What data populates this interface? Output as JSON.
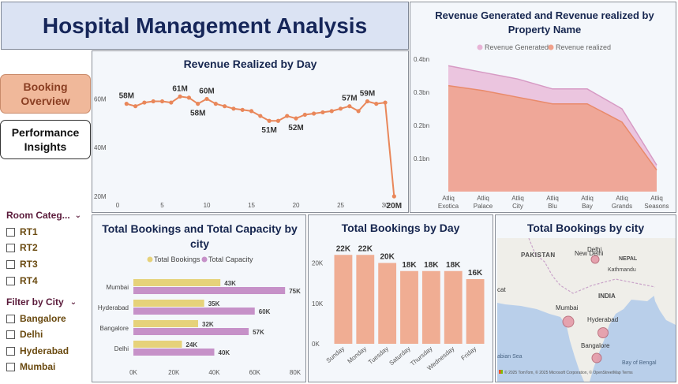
{
  "dashboard_title": "Hospital Management Analysis",
  "nav": {
    "booking_overview": "Booking Overview",
    "performance_insights": "Performance Insights"
  },
  "filters": {
    "room_category": {
      "title": "Room Categ...",
      "options": [
        "RT1",
        "RT2",
        "RT3",
        "RT4"
      ]
    },
    "city": {
      "title": "Filter by City",
      "options": [
        "Bangalore",
        "Delhi",
        "Hyderabad",
        "Mumbai"
      ]
    }
  },
  "colors": {
    "line": "#e9875a",
    "area_generated": "#e8b4d6",
    "area_realized": "#f0a18c",
    "total_bookings": "#e6d27a",
    "total_capacity": "#c691c8",
    "day_bar": "#f0ad93",
    "map_marker": "#e59aa8"
  },
  "chart_data": [
    {
      "id": "revenue_by_day",
      "type": "line",
      "title": "Revenue Realized by Day",
      "x": [
        1,
        2,
        3,
        4,
        5,
        6,
        7,
        8,
        9,
        10,
        11,
        12,
        13,
        14,
        15,
        16,
        17,
        18,
        19,
        20,
        21,
        22,
        23,
        24,
        25,
        26,
        27,
        28,
        29,
        30,
        31
      ],
      "values": [
        58,
        57,
        58.5,
        59,
        59,
        58.5,
        61,
        60.5,
        58,
        60,
        58,
        57,
        56,
        55.5,
        55,
        53,
        51,
        51,
        53,
        52,
        53.5,
        54,
        54.5,
        55,
        56,
        57,
        55,
        59,
        58,
        58.5,
        20
      ],
      "data_labels": [
        {
          "x": 1,
          "label": "58M"
        },
        {
          "x": 7,
          "label": "61M"
        },
        {
          "x": 9,
          "label": "58M"
        },
        {
          "x": 10,
          "label": "60M"
        },
        {
          "x": 17,
          "label": "51M"
        },
        {
          "x": 20,
          "label": "52M"
        },
        {
          "x": 26,
          "label": "57M"
        },
        {
          "x": 28,
          "label": "59M"
        },
        {
          "x": 31,
          "label": "20M"
        }
      ],
      "x_ticks": [
        0,
        5,
        10,
        15,
        20,
        25,
        30
      ],
      "y_ticks": [
        {
          "v": 20,
          "label": "20M"
        },
        {
          "v": 40,
          "label": "40M"
        },
        {
          "v": 60,
          "label": "60M"
        }
      ],
      "ylim": [
        20,
        65
      ],
      "xlim": [
        0,
        31.5
      ]
    },
    {
      "id": "revenue_by_property",
      "type": "area",
      "title": "Revenue Generated and Revenue realized by Property Name",
      "categories": [
        "Atliq Exotica",
        "Atliq Palace",
        "Atliq City",
        "Atliq Blu",
        "Atliq Bay",
        "Atliq Grands",
        "Atliq Seasons"
      ],
      "series": [
        {
          "name": "Revenue Generated",
          "values": [
            0.38,
            0.36,
            0.34,
            0.31,
            0.31,
            0.25,
            0.08
          ]
        },
        {
          "name": "Revenue realized",
          "values": [
            0.32,
            0.305,
            0.285,
            0.265,
            0.265,
            0.21,
            0.065
          ]
        }
      ],
      "y_ticks": [
        {
          "v": 0.1,
          "label": "0.1bn"
        },
        {
          "v": 0.2,
          "label": "0.2bn"
        },
        {
          "v": 0.3,
          "label": "0.3bn"
        },
        {
          "v": 0.4,
          "label": "0.4bn"
        }
      ],
      "ylim": [
        0,
        0.4
      ]
    },
    {
      "id": "bookings_capacity_city",
      "type": "bar",
      "title": "Total Bookings and Total Capacity by city",
      "categories": [
        "Mumbai",
        "Hyderabad",
        "Bangalore",
        "Delhi"
      ],
      "series": [
        {
          "name": "Total Bookings",
          "values": [
            43,
            35,
            32,
            24
          ],
          "labels": [
            "43K",
            "35K",
            "32K",
            "24K"
          ]
        },
        {
          "name": "Total Capacity",
          "values": [
            75,
            60,
            57,
            40
          ],
          "labels": [
            "75K",
            "60K",
            "57K",
            "40K"
          ]
        }
      ],
      "x_ticks": [
        {
          "v": 0,
          "label": "0K"
        },
        {
          "v": 20,
          "label": "20K"
        },
        {
          "v": 40,
          "label": "40K"
        },
        {
          "v": 60,
          "label": "60K"
        },
        {
          "v": 80,
          "label": "80K"
        }
      ],
      "xlim": [
        0,
        80
      ]
    },
    {
      "id": "bookings_by_day",
      "type": "bar",
      "title": "Total Bookings by Day",
      "categories": [
        "Sunday",
        "Monday",
        "Tuesday",
        "Saturday",
        "Thursday",
        "Wednesday",
        "Friday"
      ],
      "values": [
        22,
        22,
        20,
        18,
        18,
        18,
        16
      ],
      "labels": [
        "22K",
        "22K",
        "20K",
        "18K",
        "18K",
        "18K",
        "16K"
      ],
      "y_ticks": [
        {
          "v": 0,
          "label": "0K"
        },
        {
          "v": 10,
          "label": "10K"
        },
        {
          "v": 20,
          "label": "20K"
        }
      ],
      "ylim": [
        0,
        24
      ]
    }
  ],
  "map": {
    "title": "Total Bookings by city",
    "labels": {
      "pakistan": "PAKISTAN",
      "delhi": "Delhi",
      "new_delhi": "New Delhi",
      "nepal": "NEPAL",
      "kathmandu": "Kathmandu",
      "india": "INDIA",
      "mumbai": "Mumbai",
      "hyderabad": "Hyderabad",
      "bangalore": "Bangalore",
      "bay_of_bengal": "Bay of Bengal",
      "arabian_sea": "abian Sea",
      "left_edge": "cat"
    },
    "attribution": "© 2025 TomTom, © 2025 Microsoft Corporation, © OpenStreetMap  Terms"
  }
}
